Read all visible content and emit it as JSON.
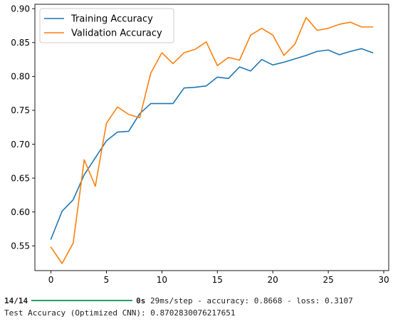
{
  "chart_data": {
    "type": "line",
    "title": "",
    "xlabel": "",
    "ylabel": "",
    "xlim": [
      -1.45,
      30.45
    ],
    "ylim": [
      0.5135,
      0.9065
    ],
    "x_ticks": [
      0,
      5,
      10,
      15,
      20,
      25,
      30
    ],
    "y_ticks": [
      0.55,
      0.6,
      0.65,
      0.7,
      0.75,
      0.8,
      0.85,
      0.9
    ],
    "x_tick_labels": [
      "0",
      "5",
      "10",
      "15",
      "20",
      "25",
      "30"
    ],
    "y_tick_labels": [
      "0.55",
      "0.60",
      "0.65",
      "0.70",
      "0.75",
      "0.80",
      "0.85",
      "0.90"
    ],
    "grid": false,
    "legend_position": "top-left",
    "x": [
      0,
      1,
      2,
      3,
      4,
      5,
      6,
      7,
      8,
      9,
      10,
      11,
      12,
      13,
      14,
      15,
      16,
      17,
      18,
      19,
      20,
      21,
      22,
      23,
      24,
      25,
      26,
      27,
      28,
      29
    ],
    "series": [
      {
        "name": "Training Accuracy",
        "color": "#1f77b4",
        "values": [
          0.56,
          0.601,
          0.618,
          0.655,
          0.68,
          0.705,
          0.718,
          0.719,
          0.745,
          0.76,
          0.76,
          0.76,
          0.783,
          0.784,
          0.786,
          0.799,
          0.797,
          0.814,
          0.808,
          0.825,
          0.817,
          0.821,
          0.826,
          0.831,
          0.837,
          0.839,
          0.832,
          0.837,
          0.841,
          0.835
        ]
      },
      {
        "name": "Validation Accuracy",
        "color": "#ff7f0e",
        "values": [
          0.548,
          0.524,
          0.554,
          0.677,
          0.638,
          0.731,
          0.755,
          0.744,
          0.739,
          0.805,
          0.835,
          0.819,
          0.835,
          0.84,
          0.851,
          0.816,
          0.828,
          0.824,
          0.861,
          0.871,
          0.861,
          0.831,
          0.848,
          0.887,
          0.868,
          0.871,
          0.877,
          0.88,
          0.873,
          0.873
        ]
      }
    ]
  },
  "console": {
    "step_count": "14/14",
    "time": "0s",
    "rest": " 29ms/step - accuracy: 0.8668 - loss: 0.3107",
    "test_line": "Test Accuracy (Optimized CNN): 0.8702830076217651"
  }
}
